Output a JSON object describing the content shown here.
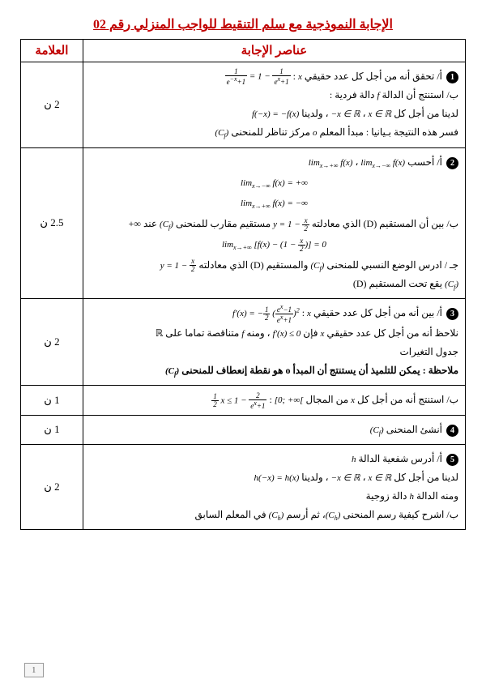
{
  "title": "الإجابة النموذجية مع سلم التنقيط للواجب المنزلي رقم 02",
  "headers": {
    "answers": "عناصر الإجابة",
    "grade": "العلامة"
  },
  "rows": [
    {
      "grade": "2 ن",
      "answers": "<span class='circle'>1</span> أ/ تحقق أنه من أجل كل عدد حقيقي <span class='math'>x</span> : <span class='math'><span class='frac'><span class='num'>1</span><span class='den'>e<sup>−x</sup>+1</span></span> = 1 − <span class='frac'><span class='num'>1</span><span class='den'>e<sup>x</sup>+1</span></span></span><br>ب/ استنتج أن الدالة <span class='math'>f</span> دالة فردية :<br>لدينا من أجل كل <span class='math'>x ∈ ℝ</span> ، <span class='math'>−x ∈ ℝ</span> ، ولدينا <span class='math'>f(−x) = −f(x)</span><br>فسر هذه النتيجة بـيانيا : مبدأ المعلم <span class='math'>o</span> مركز تناظر للمنحنى <span class='math'>(C<sub>f</sub>)</span>"
    },
    {
      "grade": "2.5 ن",
      "answers": "<span class='circle'>2</span> أ/ أحسب <span class='math'>lim<sub>x→−∞</sub> f(x)</span> ، <span class='math'>lim<sub>x→+∞</sub> f(x)</span><div class='center-line'><span class='math'>lim<sub>x→−∞</sub> f(x) = +∞</span></div><div class='center-line'><span class='math'>lim<sub>x→+∞</sub> f(x) = −∞</span></div>ب/ بين أن المستقيم (D) الذي معادلته <span class='math'>y = 1 − <span class='frac'><span class='num'>x</span><span class='den'>2</span></span></span> مستقيم مقارب للمنحنى <span class='math'>(C<sub>f</sub>)</span> عند ∞+<div class='center-line'><span class='math'>lim<sub>x→+∞</sub> [f(x) − (1 − <span class='frac'><span class='num'>x</span><span class='den'>2</span></span>)] = 0</span></div>جـ / ادرس الوضع النسبي للمنحنى <span class='math'>(C<sub>f</sub>)</span> والمستقيم (D) الذي معادلته <span class='math'>y = 1 − <span class='frac'><span class='num'>x</span><span class='den'>2</span></span></span><br><span class='math'>(C<sub>f</sub>)</span> يقع تحت المستقيم (D)"
    },
    {
      "grade": "2 ن",
      "answers": "<span class='circle'>3</span> أ/ بين أنه من أجل كل عدد حقيقي <span class='math'>x</span> : <span class='math'>f′(x) = −<span class='frac'><span class='num'>1</span><span class='den'>2</span></span> (<span class='frac'><span class='num'>e<sup>x</sup>−1</span><span class='den'>e<sup>x</sup>+1</span></span>)<sup>2</sup></span><br>نلاحظ أنه من أجل كل عدد حقيقي <span class='math'>x</span> فإن <span class='math'>f′(x) ≤ 0</span> ، ومنه <span class='math'>f</span> متناقصة تماما على ℝ<br>جدول التغيرات<br><b>ملاحظة : يمكن للتلميذ أن يستنتج أن المبدأ o هو نقطة إنعطاف للمنحنى <span class='math'>(C<sub>f</sub>)</span></b>"
    },
    {
      "grade": "1 ن",
      "answers": "ب/ استنتج أنه من أجل كل <span class='math'>x</span> من المجال <span class='math'>[0; +∞[</span> : <span class='math'><span class='frac'><span class='num'>1</span><span class='den'>2</span></span> x ≤ 1 − <span class='frac'><span class='num'>2</span><span class='den'>e<sup>x</sup>+1</span></span></span>"
    },
    {
      "grade": "1 ن",
      "answers": "<span class='circle'>4</span> أنشئ المنحنى <span class='math'>(C<sub>f</sub>)</span>"
    },
    {
      "grade": "2 ن",
      "answers": "<span class='circle'>5</span> أ/ أدرس شفعية الدالة <span class='math'>h</span><br>لدينا من أجل كل <span class='math'>x ∈ ℝ</span> ، <span class='math'>−x ∈ ℝ</span> ، ولدينا <span class='math'>h(−x) = h(x)</span><br>ومنه الدالة <span class='math'>h</span> دالة زوجية<br>ب/ اشرح كيفية رسم المنحنى <span class='math'>(C<sub>h</sub>)</span>، ثم أرسم <span class='math'>(C<sub>h</sub>)</span> في المعلم السابق"
    }
  ],
  "page": "1"
}
